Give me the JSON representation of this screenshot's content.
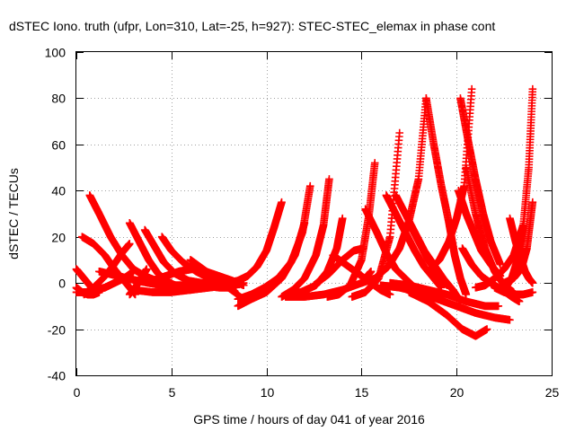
{
  "chart_data": {
    "type": "scatter",
    "title": "dSTEC Iono. truth (ufpr, Lon=310, Lat=-25, h=927): STEC-STEC_elemax in phase cont",
    "xlabel": "GPS time / hours of day 041 of year 2016",
    "ylabel": "dSTEC  / TECUs",
    "xlim": [
      0,
      25
    ],
    "ylim": [
      -40,
      100
    ],
    "xticks": [
      "0",
      "5",
      "10",
      "15",
      "20",
      "25"
    ],
    "yticks": [
      "-40",
      "-20",
      "0",
      "20",
      "40",
      "60",
      "80",
      "100"
    ],
    "grid": true,
    "marker": "plus",
    "color": "#ff0000",
    "series": [
      {
        "x": [
          0.0,
          0.3,
          0.6,
          0.9
        ],
        "y": [
          6,
          3,
          0,
          -3
        ]
      },
      {
        "x": [
          0.0,
          0.3,
          0.6,
          0.9,
          1.2
        ],
        "y": [
          -2,
          -4,
          -5,
          -5,
          -4
        ]
      },
      {
        "x": [
          0.0,
          0.5,
          1.0,
          1.5,
          2.0,
          2.5,
          3.0
        ],
        "y": [
          -4,
          -4,
          -3,
          -2,
          0,
          2,
          5
        ]
      },
      {
        "x": [
          0.3,
          0.9,
          1.5,
          2.0,
          2.6,
          3.1
        ],
        "y": [
          20,
          17,
          12,
          6,
          0,
          -5
        ]
      },
      {
        "x": [
          0.7,
          1.2,
          1.8,
          2.4,
          3.0,
          3.6,
          4.2,
          5.0
        ],
        "y": [
          38,
          30,
          20,
          12,
          6,
          3,
          1,
          0
        ]
      },
      {
        "x": [
          0.4,
          0.9,
          1.4,
          1.9,
          2.4,
          2.8
        ],
        "y": [
          -5,
          -2,
          2,
          7,
          13,
          17
        ]
      },
      {
        "x": [
          1.2,
          1.7,
          2.2,
          2.7,
          3.2,
          3.8,
          4.5,
          5.5,
          6.5,
          7.5,
          8.3
        ],
        "y": [
          5,
          4,
          3,
          2,
          1,
          0,
          -1,
          -1,
          -1,
          -2,
          -2
        ]
      },
      {
        "x": [
          2.8,
          3.3,
          3.8,
          4.3,
          4.9,
          5.5,
          6.0
        ],
        "y": [
          26,
          18,
          10,
          4,
          0,
          -2,
          -3
        ]
      },
      {
        "x": [
          2.8,
          3.1,
          3.4,
          3.7
        ],
        "y": [
          -5,
          -2,
          2,
          6
        ]
      },
      {
        "x": [
          3.6,
          4.1,
          4.6,
          5.2,
          5.9,
          6.6,
          7.3,
          8.0
        ],
        "y": [
          23,
          16,
          9,
          4,
          1,
          0,
          -1,
          -2
        ]
      },
      {
        "x": [
          4.5,
          5.0,
          5.6,
          6.3,
          7.0,
          7.7,
          8.4
        ],
        "y": [
          20,
          14,
          9,
          5,
          2,
          0,
          -2
        ]
      },
      {
        "x": [
          3.0,
          4.0,
          5.0,
          6.0,
          7.0,
          8.0,
          8.8
        ],
        "y": [
          -3,
          -4,
          -4,
          -3,
          -2,
          -1,
          0
        ]
      },
      {
        "x": [
          4.0,
          4.7,
          5.4,
          6.1,
          6.8,
          7.5,
          8.2,
          8.8
        ],
        "y": [
          1,
          3,
          5,
          6,
          5,
          3,
          1,
          -1
        ]
      },
      {
        "x": [
          6.0,
          6.5,
          7.0,
          7.5,
          8.0,
          8.5
        ],
        "y": [
          10,
          7,
          4,
          1,
          -2,
          -5
        ]
      },
      {
        "x": [
          8.0,
          8.5,
          9.0,
          9.5,
          10.0,
          10.4,
          10.8
        ],
        "y": [
          0,
          1,
          3,
          7,
          14,
          24,
          35
        ]
      },
      {
        "x": [
          8.5,
          9.2,
          10.0,
          10.8,
          11.5,
          12.0
        ],
        "y": [
          -10,
          -7,
          -4,
          2,
          12,
          26
        ]
      },
      {
        "x": [
          8.5,
          9.2,
          9.9,
          10.6,
          11.3,
          11.9,
          12.3
        ],
        "y": [
          -7,
          -5,
          -2,
          2,
          9,
          22,
          42
        ]
      },
      {
        "x": [
          10.8,
          11.4,
          12.0,
          12.6,
          13.0,
          13.3
        ],
        "y": [
          -6,
          -3,
          2,
          12,
          25,
          45
        ]
      },
      {
        "x": [
          11.0,
          11.8,
          12.6,
          13.2,
          13.7,
          14.0
        ],
        "y": [
          -5,
          -4,
          -1,
          5,
          15,
          28
        ]
      },
      {
        "x": [
          11.0,
          12.0,
          13.0,
          14.0,
          15.0,
          15.5
        ],
        "y": [
          -6,
          -6,
          -5,
          -3,
          0,
          5
        ]
      },
      {
        "x": [
          13.2,
          13.8,
          14.4,
          15.0,
          15.4,
          15.7
        ],
        "y": [
          -6,
          -5,
          -1,
          10,
          30,
          52
        ]
      },
      {
        "x": [
          12.5,
          13.3,
          14.0,
          14.6,
          15.1
        ],
        "y": [
          -1,
          4,
          10,
          14,
          15
        ]
      },
      {
        "x": [
          13.5,
          14.0,
          14.5,
          15.0,
          15.5,
          16.0,
          16.5
        ],
        "y": [
          12,
          9,
          6,
          3,
          0,
          -3,
          -5
        ]
      },
      {
        "x": [
          14.5,
          15.2,
          15.9,
          16.5,
          17.0
        ],
        "y": [
          -6,
          -4,
          2,
          20,
          65
        ]
      },
      {
        "x": [
          15.0,
          15.7,
          16.4,
          17.0,
          17.5,
          18.0,
          18.4
        ],
        "y": [
          0,
          2,
          7,
          15,
          27,
          45,
          80
        ]
      },
      {
        "x": [
          15.2,
          15.8,
          16.3,
          16.8,
          17.3,
          17.8,
          18.2
        ],
        "y": [
          32,
          22,
          13,
          6,
          2,
          -2,
          -5
        ]
      },
      {
        "x": [
          16.3,
          16.8,
          17.3,
          17.8,
          18.3,
          18.8,
          19.2
        ],
        "y": [
          38,
          30,
          22,
          14,
          7,
          2,
          -2
        ]
      },
      {
        "x": [
          16.8,
          17.3,
          17.8,
          18.3,
          18.8,
          19.3,
          19.8,
          20.2
        ],
        "y": [
          38,
          30,
          22,
          14,
          8,
          2,
          -3,
          -8
        ]
      },
      {
        "x": [
          17.5,
          18.0,
          18.5,
          19.0,
          19.5
        ],
        "y": [
          26,
          18,
          10,
          4,
          -1
        ]
      },
      {
        "x": [
          18.4,
          18.8,
          19.2,
          19.6,
          19.9,
          20.2,
          20.5
        ],
        "y": [
          80,
          60,
          42,
          26,
          12,
          2,
          -5
        ]
      },
      {
        "x": [
          18.5,
          19.1,
          19.6,
          20.0,
          20.4,
          20.8
        ],
        "y": [
          5,
          10,
          18,
          28,
          42,
          84
        ]
      },
      {
        "x": [
          16.5,
          17.5,
          18.5,
          19.5,
          20.5,
          21.5,
          22.2
        ],
        "y": [
          0,
          -1,
          -3,
          -5,
          -8,
          -10,
          -10
        ]
      },
      {
        "x": [
          16.0,
          17.0,
          18.0,
          19.0,
          20.0,
          21.0,
          22.0,
          22.8
        ],
        "y": [
          -1,
          -2,
          -4,
          -7,
          -10,
          -13,
          -15,
          -16
        ]
      },
      {
        "x": [
          17.5,
          18.5,
          19.5,
          20.3,
          21.0,
          21.6
        ],
        "y": [
          -4,
          -8,
          -14,
          -20,
          -23,
          -20
        ]
      },
      {
        "x": [
          20.2,
          20.6,
          21.0,
          21.4,
          21.8,
          22.3
        ],
        "y": [
          80,
          62,
          45,
          30,
          18,
          8
        ]
      },
      {
        "x": [
          20.1,
          20.5,
          20.9,
          21.3,
          21.8,
          22.3
        ],
        "y": [
          40,
          30,
          22,
          14,
          8,
          3
        ]
      },
      {
        "x": [
          20.5,
          21.0,
          21.5,
          22.0,
          22.5,
          23.0
        ],
        "y": [
          50,
          30,
          15,
          5,
          -1,
          -4
        ]
      },
      {
        "x": [
          20.3,
          20.8,
          21.3,
          21.8,
          22.4,
          22.9,
          23.3
        ],
        "y": [
          15,
          8,
          3,
          0,
          -3,
          -6,
          -8
        ]
      },
      {
        "x": [
          21.0,
          21.5,
          22.0,
          22.5,
          23.0,
          23.5
        ],
        "y": [
          -2,
          -1,
          2,
          6,
          12,
          25
        ]
      },
      {
        "x": [
          22.8,
          23.1,
          23.4,
          23.6,
          23.8,
          24.0
        ],
        "y": [
          28,
          18,
          10,
          5,
          2,
          0
        ]
      },
      {
        "x": [
          22.5,
          22.9,
          23.2,
          23.5,
          23.8,
          24.0
        ],
        "y": [
          -3,
          2,
          10,
          24,
          50,
          84
        ]
      },
      {
        "x": [
          22.5,
          23.0,
          23.4,
          23.7,
          24.0
        ],
        "y": [
          0,
          2,
          6,
          15,
          35
        ]
      },
      {
        "x": [
          22.0,
          22.5,
          23.0,
          23.5,
          24.0
        ],
        "y": [
          -2,
          -4,
          -5,
          -5,
          -4
        ]
      }
    ]
  }
}
